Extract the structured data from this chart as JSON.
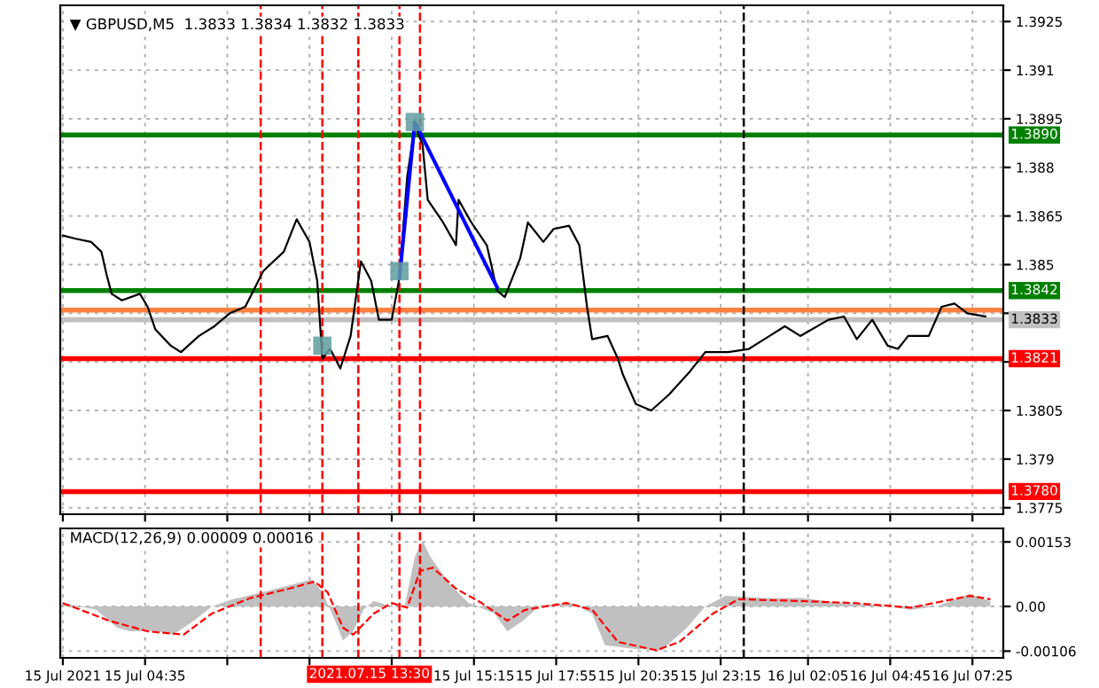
{
  "chart_data": [
    {
      "type": "line",
      "title": "▼ GBPUSD,M5  1.3833 1.3834 1.3832 1.3833",
      "xlim": [
        "2021-07-15T01:50",
        "2021-07-16T08:25"
      ],
      "ylim": [
        1.3773,
        1.393
      ],
      "xticks": [
        {
          "value": "2021-07-15T01:55",
          "label": null
        },
        {
          "value": "2021-07-15T04:35",
          "label": null
        },
        {
          "value": "2021-07-15T07:15",
          "label": null
        },
        {
          "value": "2021-07-15T09:55",
          "label": null
        },
        {
          "value": "2021-07-15T12:35",
          "label": null
        },
        {
          "value": "2021-07-15T15:15",
          "label": null
        },
        {
          "value": "2021-07-15T17:55",
          "label": null
        },
        {
          "value": "2021-07-15T20:35",
          "label": null
        },
        {
          "value": "2021-07-15T23:15",
          "label": null
        },
        {
          "value": "2021-07-16T02:05",
          "label": null
        },
        {
          "value": "2021-07-16T04:45",
          "label": null
        },
        {
          "value": "2021-07-16T07:25",
          "label": null
        }
      ],
      "yticks": [
        1.3925,
        1.391,
        1.3895,
        1.388,
        1.3865,
        1.385,
        {
          "value": 1.3835,
          "label": null
        },
        {
          "value": 1.382,
          "label": null
        },
        1.3805,
        1.379,
        1.3775
      ],
      "tick_labels": "y",
      "grid": true,
      "series": [
        {
          "color": "#000000",
          "x": [
            "2021-07-15T01:55",
            "2021-07-15T02:20",
            "2021-07-15T02:50",
            "2021-07-15T03:10",
            "2021-07-15T03:20",
            "2021-07-15T03:30",
            "2021-07-15T03:50",
            "2021-07-15T04:25",
            "2021-07-15T04:40",
            "2021-07-15T04:55",
            "2021-07-15T05:25",
            "2021-07-15T05:45",
            "2021-07-15T06:20",
            "2021-07-15T06:50",
            "2021-07-15T07:20",
            "2021-07-15T07:50",
            "2021-07-15T08:25",
            "2021-07-15T09:05",
            "2021-07-15T09:30",
            "2021-07-15T09:55",
            "2021-07-15T10:10",
            "2021-07-15T10:20",
            "2021-07-15T10:35",
            "2021-07-15T10:55",
            "2021-07-15T11:15",
            "2021-07-15T11:35",
            "2021-07-15T11:55",
            "2021-07-15T12:10",
            "2021-07-15T12:35",
            "2021-07-15T12:50",
            "2021-07-15T13:05",
            "2021-07-15T13:20",
            "2021-07-15T13:35",
            "2021-07-15T13:45",
            "2021-07-15T14:15",
            "2021-07-15T14:40",
            "2021-07-15T14:45",
            "2021-07-15T15:10",
            "2021-07-15T15:40",
            "2021-07-15T16:00",
            "2021-07-15T16:15",
            "2021-07-15T16:45",
            "2021-07-15T17:00",
            "2021-07-15T17:30",
            "2021-07-15T17:50",
            "2021-07-15T18:20",
            "2021-07-15T18:40",
            "2021-07-15T18:55",
            "2021-07-15T19:05",
            "2021-07-15T19:35",
            "2021-07-15T19:55",
            "2021-07-15T20:05",
            "2021-07-15T20:30",
            "2021-07-15T21:00",
            "2021-07-15T21:35",
            "2021-07-15T22:15",
            "2021-07-15T22:45",
            "2021-07-15T23:30",
            "2021-07-16T00:10",
            "2021-07-16T00:40",
            "2021-07-16T01:20",
            "2021-07-16T01:50",
            "2021-07-16T02:45",
            "2021-07-16T03:15",
            "2021-07-16T03:40",
            "2021-07-16T04:10",
            "2021-07-16T04:40",
            "2021-07-16T05:00",
            "2021-07-16T05:20",
            "2021-07-16T06:00",
            "2021-07-16T06:25",
            "2021-07-16T06:50",
            "2021-07-16T07:15",
            "2021-07-16T07:50"
          ],
          "values": [
            1.3859,
            1.3858,
            1.3857,
            1.3854,
            1.3847,
            1.3841,
            1.3839,
            1.3841,
            1.3837,
            1.383,
            1.3825,
            1.3823,
            1.3828,
            1.3831,
            1.3835,
            1.3837,
            1.3848,
            1.3854,
            1.3864,
            1.3857,
            1.3845,
            1.3821,
            1.3824,
            1.3818,
            1.3828,
            1.3851,
            1.3845,
            1.3833,
            1.3833,
            1.3846,
            1.3877,
            1.3893,
            1.3887,
            1.387,
            1.3863,
            1.3856,
            1.387,
            1.3863,
            1.3856,
            1.3842,
            1.384,
            1.3852,
            1.3863,
            1.3857,
            1.3861,
            1.3862,
            1.3856,
            1.3837,
            1.3827,
            1.3828,
            1.3821,
            1.3816,
            1.3807,
            1.3805,
            1.381,
            1.3817,
            1.3823,
            1.3823,
            1.3824,
            1.3827,
            1.3831,
            1.3828,
            1.3833,
            1.3834,
            1.3827,
            1.3833,
            1.3825,
            1.3824,
            1.3828,
            1.3828,
            1.3837,
            1.3838,
            1.3835,
            1.3834
          ]
        },
        {
          "color": "#0000ff",
          "x": [
            "2021-07-15T12:50",
            "2021-07-15T13:20",
            "2021-07-15T16:00"
          ],
          "values": [
            1.3846,
            1.3894,
            1.3843
          ]
        },
        {
          "type": "scatter",
          "color": "#5f9ea0",
          "marker": "square",
          "x": [
            "2021-07-15T10:20",
            "2021-07-15T12:50",
            "2021-07-15T13:20"
          ],
          "values": [
            1.3825,
            1.3848,
            1.3894
          ]
        }
      ],
      "ref_lines": [
        {
          "axis": "y",
          "value": 1.389,
          "label": "1.3890",
          "color": "#008000"
        },
        {
          "axis": "y",
          "value": 1.3842,
          "label": "1.3842",
          "color": "#008000"
        },
        {
          "axis": "y",
          "value": 1.3836,
          "label": null,
          "color": "#ff8040"
        },
        {
          "axis": "y",
          "value": 1.3833,
          "label": "1.3833",
          "color": "#c0c0c0"
        },
        {
          "axis": "y",
          "value": 1.3821,
          "label": "1.3821",
          "color": "#ff0000"
        },
        {
          "axis": "y",
          "value": 1.378,
          "label": "1.3780",
          "color": "#ff0000"
        },
        {
          "axis": "x",
          "value": "2021-07-15T08:20",
          "color": "#ff0000",
          "line_style": "dashed"
        },
        {
          "axis": "x",
          "value": "2021-07-15T10:20",
          "color": "#ff0000",
          "line_style": "dashed"
        },
        {
          "axis": "x",
          "value": "2021-07-15T11:30",
          "color": "#ff0000",
          "line_style": "dashed"
        },
        {
          "axis": "x",
          "value": "2021-07-15T12:50",
          "color": "#ff0000",
          "line_style": "dashed"
        },
        {
          "axis": "x",
          "value": "2021-07-15T13:30",
          "color": "#ff0000",
          "line_style": "dashed"
        },
        {
          "axis": "x",
          "value": "2021-07-16T00:00",
          "color": "#000000",
          "line_style": "dashed"
        }
      ]
    },
    {
      "type": "area",
      "title": "MACD(12,26,9) 0.00009 0.00016",
      "xlim": [
        "2021-07-15T01:50",
        "2021-07-16T08:25"
      ],
      "ylim": [
        -0.00122,
        0.00185
      ],
      "xticks": [
        {
          "value": "2021-07-15T01:55",
          "label": "15 Jul 2021"
        },
        {
          "value": "2021-07-15T04:35",
          "label": "15 Jul 04:35"
        },
        {
          "value": "2021-07-15T07:15",
          "label": null
        },
        {
          "value": "2021-07-15T09:55",
          "label": null
        },
        {
          "value": "2021-07-15T12:35",
          "label": null
        },
        {
          "value": "2021-07-15T15:15",
          "label": "15 Jul 15:15"
        },
        {
          "value": "2021-07-15T17:55",
          "label": "15 Jul 17:55"
        },
        {
          "value": "2021-07-15T20:35",
          "label": "15 Jul 20:35"
        },
        {
          "value": "2021-07-15T23:15",
          "label": "15 Jul 23:15"
        },
        {
          "value": "2021-07-16T02:05",
          "label": "16 Jul 02:05"
        },
        {
          "value": "2021-07-16T04:45",
          "label": "16 Jul 04:45"
        },
        {
          "value": "2021-07-16T07:25",
          "label": "16 Jul 07:25"
        }
      ],
      "yticks": [
        0.00153,
        {
          "value": 0,
          "label": "0.00"
        },
        {
          "value": -0.00106,
          "label": "-0.00106"
        }
      ],
      "grid": true,
      "series": [
        {
          "color": "#c0c0c0",
          "x": [
            "2021-07-15T01:55",
            "2021-07-15T03:00",
            "2021-07-15T03:40",
            "2021-07-15T04:05",
            "2021-07-15T04:55",
            "2021-07-15T05:30",
            "2021-07-15T06:10",
            "2021-07-15T06:45",
            "2021-07-15T07:25",
            "2021-07-15T08:25",
            "2021-07-15T09:15",
            "2021-07-15T10:00",
            "2021-07-15T10:20",
            "2021-07-15T10:45",
            "2021-07-15T11:00",
            "2021-07-15T11:20",
            "2021-07-15T11:40",
            "2021-07-15T12:00",
            "2021-07-15T12:35",
            "2021-07-15T13:00",
            "2021-07-15T13:20",
            "2021-07-15T13:35",
            "2021-07-15T13:50",
            "2021-07-15T14:30",
            "2021-07-15T15:05",
            "2021-07-15T15:55",
            "2021-07-15T16:20",
            "2021-07-15T16:50",
            "2021-07-15T17:25",
            "2021-07-15T18:25",
            "2021-07-15T19:05",
            "2021-07-15T19:30",
            "2021-07-15T20:30",
            "2021-07-15T21:20",
            "2021-07-15T22:10",
            "2021-07-15T22:45",
            "2021-07-15T23:25",
            "2021-07-16T00:40",
            "2021-07-16T01:55",
            "2021-07-16T03:10",
            "2021-07-16T04:25",
            "2021-07-16T05:25",
            "2021-07-16T06:15",
            "2021-07-16T07:20",
            "2021-07-16T08:00"
          ],
          "values": [
            8e-05,
            -8e-05,
            -0.0005,
            -0.00059,
            -0.00059,
            -0.00067,
            -0.00034,
            0.0,
            0.00017,
            0.00034,
            0.0005,
            0.00064,
            0.00034,
            -0.00034,
            -0.00081,
            -0.00059,
            -8e-05,
            0.00013,
            0.0,
            0.0,
            0.00118,
            0.00155,
            0.00118,
            0.0005,
            8e-05,
            -0.00017,
            -0.00059,
            -0.00034,
            3e-05,
            8e-05,
            -0.00017,
            -0.00092,
            -0.00101,
            -0.00104,
            -0.0005,
            0.0,
            0.00025,
            0.0002,
            0.0002,
            8e-05,
            3e-05,
            -8e-05,
            0.0,
            0.0003,
            0.00012
          ]
        },
        {
          "type": "line",
          "color": "#ff0000",
          "line_style": "dashed",
          "x": [
            "2021-07-15T01:55",
            "2021-07-15T03:25",
            "2021-07-15T04:40",
            "2021-07-15T05:50",
            "2021-07-15T06:45",
            "2021-07-15T08:00",
            "2021-07-15T09:15",
            "2021-07-15T10:05",
            "2021-07-15T10:30",
            "2021-07-15T11:00",
            "2021-07-15T11:20",
            "2021-07-15T12:00",
            "2021-07-15T12:35",
            "2021-07-15T13:05",
            "2021-07-15T13:30",
            "2021-07-15T13:55",
            "2021-07-15T14:40",
            "2021-07-15T15:30",
            "2021-07-15T16:20",
            "2021-07-15T16:55",
            "2021-07-15T18:15",
            "2021-07-15T19:05",
            "2021-07-15T19:55",
            "2021-07-15T21:10",
            "2021-07-15T21:55",
            "2021-07-15T23:00",
            "2021-07-15T23:50",
            "2021-07-16T01:45",
            "2021-07-16T03:35",
            "2021-07-16T05:25",
            "2021-07-16T07:20",
            "2021-07-16T08:00"
          ],
          "values": [
            8e-05,
            -0.00034,
            -0.00059,
            -0.00067,
            -0.00017,
            0.0002,
            0.00042,
            0.00059,
            0.00034,
            -0.0005,
            -0.00067,
            -0.00017,
            8e-05,
            -3e-05,
            0.00084,
            0.00092,
            0.00042,
            8e-05,
            -0.00034,
            -8e-05,
            8e-05,
            -8e-05,
            -0.00084,
            -0.00104,
            -0.00084,
            -0.00017,
            0.00017,
            0.00013,
            8e-05,
            -3e-05,
            0.00025,
            0.00017
          ]
        }
      ],
      "ref_lines": [
        {
          "axis": "x",
          "value": "2021-07-15T08:20",
          "color": "#ff0000",
          "line_style": "dashed"
        },
        {
          "axis": "x",
          "value": "2021-07-15T10:20",
          "color": "#ff0000",
          "line_style": "dashed"
        },
        {
          "axis": "x",
          "value": "2021-07-15T11:30",
          "color": "#ff0000",
          "line_style": "dashed"
        },
        {
          "axis": "x",
          "value": "2021-07-15T12:50",
          "color": "#ff0000",
          "line_style": "dashed"
        },
        {
          "axis": "x",
          "value": "2021-07-15T13:30",
          "label": "2021.07.15 13:30",
          "color": "#ff0000",
          "line_style": "dashed"
        },
        {
          "axis": "x",
          "value": "2021-07-16T00:00",
          "color": "#000000",
          "line_style": "dashed"
        }
      ]
    }
  ]
}
